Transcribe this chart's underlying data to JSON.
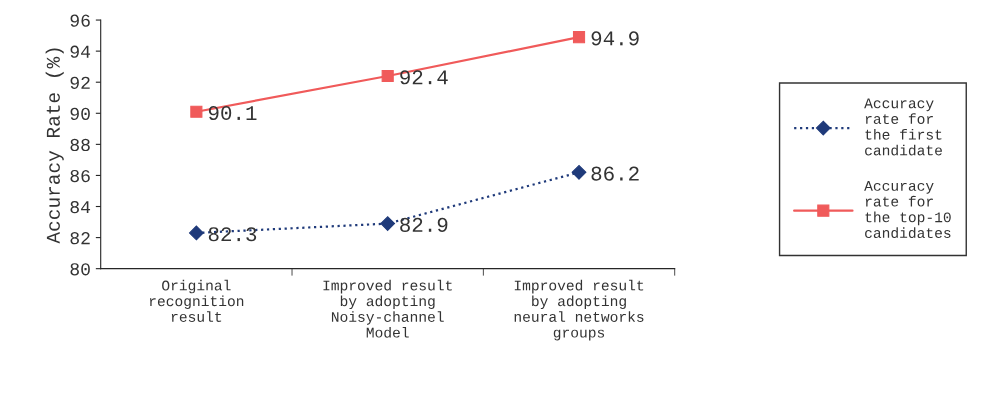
{
  "chart_data": {
    "type": "line",
    "ylabel": "Accuracy Rate (%)",
    "categories": [
      "Original\nrecognition\nresult",
      "Improved result\nby adopting\nNoisy-channel\nModel",
      "Improved result\nby adopting\nneural networks\ngroups"
    ],
    "series": [
      {
        "name": "Accuracy\nrate for\nthe first\ncandidate",
        "color": "#1f3a7a",
        "values": [
          82.3,
          82.9,
          86.2
        ],
        "marker": "diamond",
        "line_style": "dotted"
      },
      {
        "name": "Accuracy\nrate for\nthe top-10\ncandidates",
        "color": "#f05a5a",
        "values": [
          90.1,
          92.4,
          94.9
        ],
        "marker": "square",
        "line_style": "solid"
      }
    ],
    "ylim": [
      80,
      96
    ],
    "yticks": [
      80,
      82,
      84,
      86,
      88,
      90,
      92,
      94,
      96
    ],
    "data_labels": true,
    "grid": false,
    "legend": "right"
  }
}
